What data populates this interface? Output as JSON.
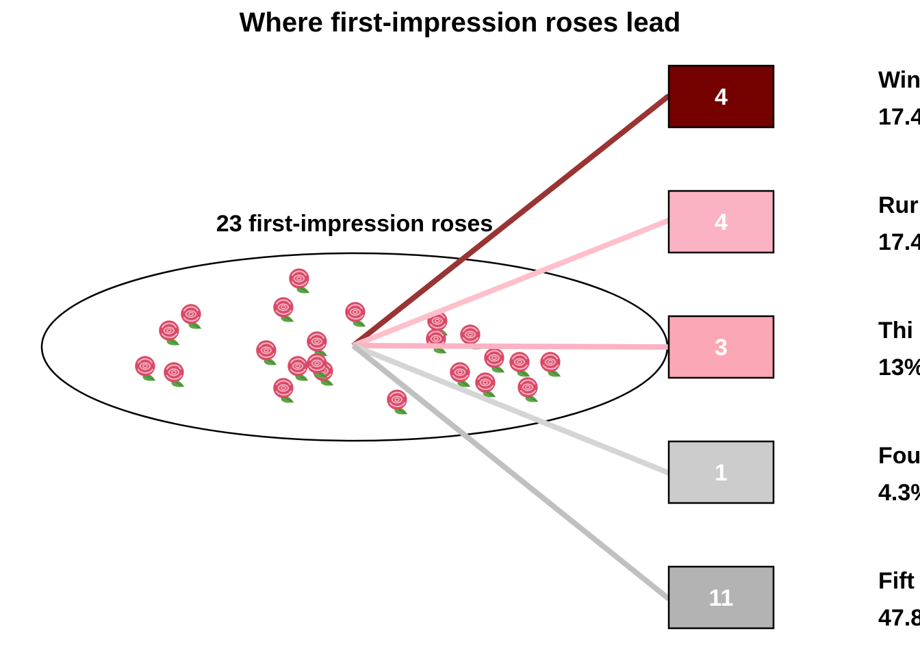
{
  "chart_data": {
    "type": "diagram",
    "title": "Where first-impression roses lead",
    "group_label": "23 first-impression roses",
    "total": 23,
    "icon": "rose-icon",
    "outcomes": [
      {
        "label": "Win",
        "count": 4,
        "count_text": "4",
        "percent_text": "17.4",
        "color": "#750000"
      },
      {
        "label": "Rur",
        "count": 4,
        "count_text": "4",
        "percent_text": "17.4",
        "color": "#fbb3c3"
      },
      {
        "label": "Thi",
        "count": 3,
        "count_text": "3",
        "percent_text": "13%",
        "color": "#fba7b5"
      },
      {
        "label": "Fou",
        "count": 1,
        "count_text": "1",
        "percent_text": "4.3%",
        "color": "#cccccc"
      },
      {
        "label": "Fift",
        "count": 11,
        "count_text": "11",
        "percent_text": "47.8",
        "color": "#b3b3b3"
      }
    ],
    "line_colors": [
      "#9a3434",
      "#ffc0cb",
      "#fbb3c3",
      "#d5d5d5",
      "#c0c0c0"
    ]
  }
}
